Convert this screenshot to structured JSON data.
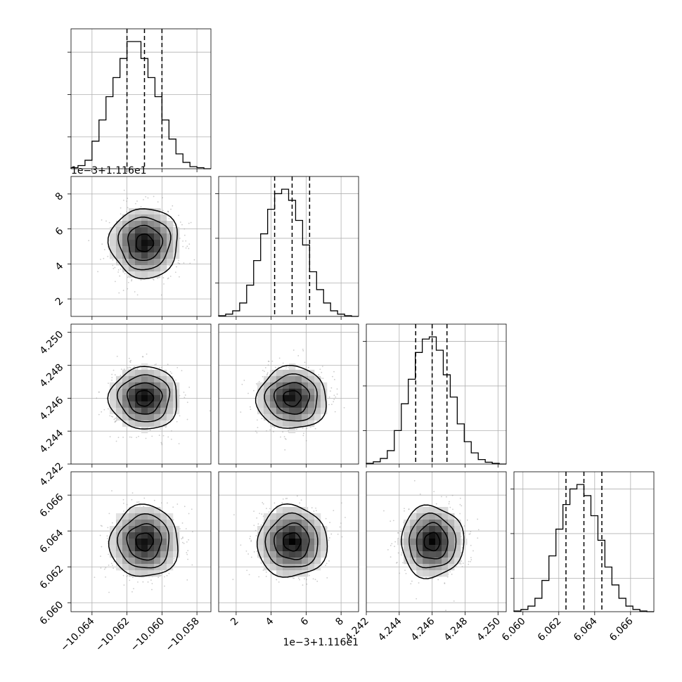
{
  "chart_data": {
    "type": "corner",
    "title": "",
    "grid": true,
    "parameters": [
      {
        "name": "",
        "range": [
          -10.0652,
          -10.0572
        ],
        "ticks": [
          -10.064,
          -10.062,
          -10.06,
          -10.058
        ],
        "tick_labels": [
          "−10.064",
          "−10.062",
          "−10.060",
          "−10.058"
        ],
        "mean": -10.061,
        "sigma": 0.00098,
        "quantiles": [
          -10.062,
          -10.061,
          -10.06
        ]
      },
      {
        "name": "",
        "range": [
          1.0,
          9.0
        ],
        "ticks": [
          2,
          4,
          6,
          8
        ],
        "tick_labels": [
          "2",
          "4",
          "6",
          "8"
        ],
        "offset_label": "1e−3+1.116e1",
        "mean": 5.2,
        "sigma": 1.0,
        "quantiles": [
          4.2,
          5.2,
          6.2
        ]
      },
      {
        "name": "",
        "range": [
          4.242,
          4.2505
        ],
        "ticks": [
          4.242,
          4.244,
          4.246,
          4.248,
          4.25
        ],
        "tick_labels": [
          "4.242",
          "4.244",
          "4.246",
          "4.248",
          "4.250"
        ],
        "mean": 4.246,
        "sigma": 0.00095,
        "quantiles": [
          4.245,
          4.246,
          4.2469
        ]
      },
      {
        "name": "",
        "range": [
          6.0595,
          6.0673
        ],
        "ticks": [
          6.06,
          6.062,
          6.064,
          6.066
        ],
        "tick_labels": [
          "6.060",
          "6.062",
          "6.064",
          "6.066"
        ],
        "mean": 6.0634,
        "sigma": 0.001,
        "quantiles": [
          6.0624,
          6.0634,
          6.0644
        ]
      }
    ],
    "histograms": [
      {
        "bins": 20,
        "counts": [
          0.5,
          1.5,
          4,
          13,
          23,
          34,
          43,
          52,
          60,
          60,
          52,
          43,
          34,
          23,
          14,
          7,
          3,
          1,
          0.5,
          0
        ]
      },
      {
        "bins": 20,
        "counts": [
          0.3,
          1,
          2.5,
          6,
          14,
          25,
          37,
          48,
          55,
          57,
          52,
          43,
          32,
          20,
          12,
          6,
          2.5,
          1,
          0.3,
          0
        ]
      },
      {
        "bins": 20,
        "counts": [
          0.3,
          1,
          2.5,
          6,
          15,
          27,
          38,
          50,
          56,
          57,
          51,
          40,
          30,
          18,
          10,
          5,
          2,
          0.8,
          0.3,
          0
        ]
      },
      {
        "bins": 20,
        "counts": [
          0.3,
          1,
          2.5,
          6,
          14,
          25,
          37,
          48,
          55,
          57,
          52,
          43,
          32,
          20,
          12,
          6,
          2.5,
          1,
          0.3,
          0
        ]
      }
    ],
    "contour_levels_sigma": [
      0.5,
      1.0,
      1.5,
      2.0
    ]
  }
}
